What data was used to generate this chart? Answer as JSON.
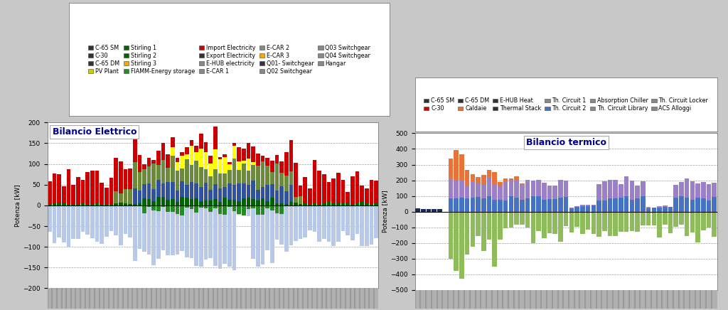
{
  "chart1": {
    "title": "Bilancio Elettrico",
    "ylabel": "Potenza [kW]",
    "ylim": [
      -200.0,
      200.0
    ],
    "yticks": [
      -200.0,
      -150.0,
      -100.0,
      -50.0,
      0.0,
      50.0,
      100.0,
      150.0,
      200.0
    ],
    "n_bars": 70,
    "colors": {
      "light_blue": "#B8C8E8",
      "red": "#CC0000",
      "olive": "#6B8B3B",
      "yellow": "#FFFF00",
      "blue": "#3050A0",
      "dark_green": "#006400",
      "navy": "#1A2C5A",
      "orange": "#FFA500",
      "fiamm_green": "#228B22"
    },
    "legend_items": [
      {
        "label": "C-65 SM",
        "color": "#333333"
      },
      {
        "label": "C-30",
        "color": "#333333"
      },
      {
        "label": "C-65 DM",
        "color": "#333333"
      },
      {
        "label": "PV Plant",
        "color": "#CCCC00"
      },
      {
        "label": "Stirling 1",
        "color": "#006400"
      },
      {
        "label": "Stirling 2",
        "color": "#006400"
      },
      {
        "label": "Stirling 3",
        "color": "#FFA500"
      },
      {
        "label": "FIAMM-Energy storage",
        "color": "#228B22"
      },
      {
        "label": "Import Electricity",
        "color": "#CC0000"
      },
      {
        "label": "Export Electricity",
        "color": "#333333"
      },
      {
        "label": "E-HUB electricity",
        "color": "#888888"
      },
      {
        "label": "E-CAR 1",
        "color": "#888888"
      },
      {
        "label": "E-CAR 2",
        "color": "#888888"
      },
      {
        "label": "E-CAR 3",
        "color": "#FFA500"
      },
      {
        "label": "Q01- Switchgear",
        "color": "#333333"
      },
      {
        "label": "Q02 Switchgear",
        "color": "#888888"
      },
      {
        "label": "Q03 Switchgear",
        "color": "#888888"
      },
      {
        "label": "Q04 Switchgear",
        "color": "#888888"
      },
      {
        "label": "Hangar",
        "color": "#888888"
      }
    ]
  },
  "chart2": {
    "title": "Bilancio termico",
    "ylabel": "Potenza [kW]",
    "ylim": [
      -500.0,
      500.0
    ],
    "yticks": [
      -500.0,
      -400.0,
      -300.0,
      -200.0,
      -100.0,
      0.0,
      100.0,
      200.0,
      300.0,
      400.0,
      500.0
    ],
    "n_bars": 55,
    "colors": {
      "green": "#8FBC5A",
      "blue": "#4472C4",
      "purple": "#9B80C8",
      "orange": "#E8733A",
      "navy": "#1A2C5A"
    },
    "legend_items": [
      {
        "label": "C-65 SM",
        "color": "#333333"
      },
      {
        "label": "C-30",
        "color": "#CC0000"
      },
      {
        "label": "C-65 DM",
        "color": "#333333"
      },
      {
        "label": "Caldaie",
        "color": "#E8733A"
      },
      {
        "label": "E-HUB Heat",
        "color": "#333333"
      },
      {
        "label": "Thermal Stack",
        "color": "#333333"
      },
      {
        "label": "Th. Circuit 1",
        "color": "#888888"
      },
      {
        "label": "Th. Circuit 2",
        "color": "#4472C4"
      },
      {
        "label": "Absorption Chiller",
        "color": "#888888"
      },
      {
        "label": "Th. Circuit Library",
        "color": "#888888"
      },
      {
        "label": "Th. Circuit Locker",
        "color": "#888888"
      },
      {
        "label": "ACS Alloggi",
        "color": "#888888"
      }
    ]
  },
  "fig_bg": "#C8C8C8",
  "plot_bg": "#FFFFFF",
  "legend_bg": "#F0F0F0"
}
